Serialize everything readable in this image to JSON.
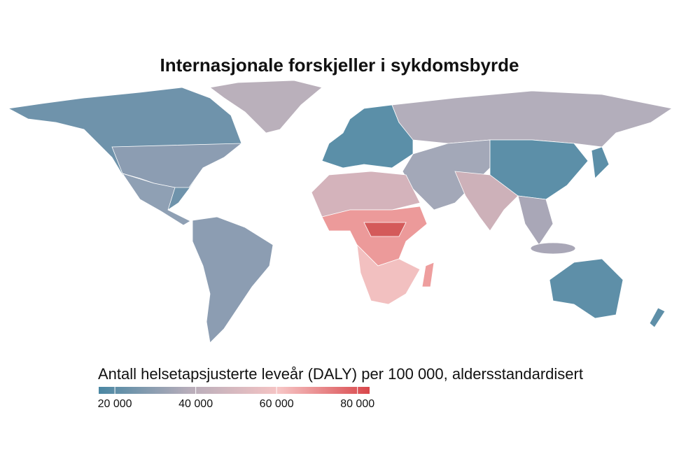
{
  "chart_data": {
    "type": "map",
    "title": "Internasjonale forskjeller i sykdomsbyrde",
    "colorbar": {
      "title": "Antall helsetapsjusterte leveår (DALY) per 100 000, aldersstandardisert",
      "lim": [
        16000,
        83000
      ],
      "ticks": [
        {
          "value": 20000,
          "label": "20 000"
        },
        {
          "value": 40000,
          "label": "40 000"
        },
        {
          "value": 60000,
          "label": "60 000"
        },
        {
          "value": 80000,
          "label": "80 000"
        }
      ],
      "colors": [
        "#4a87a3",
        "#b7adba",
        "#f6c4c4",
        "#d9474b"
      ]
    }
  }
}
